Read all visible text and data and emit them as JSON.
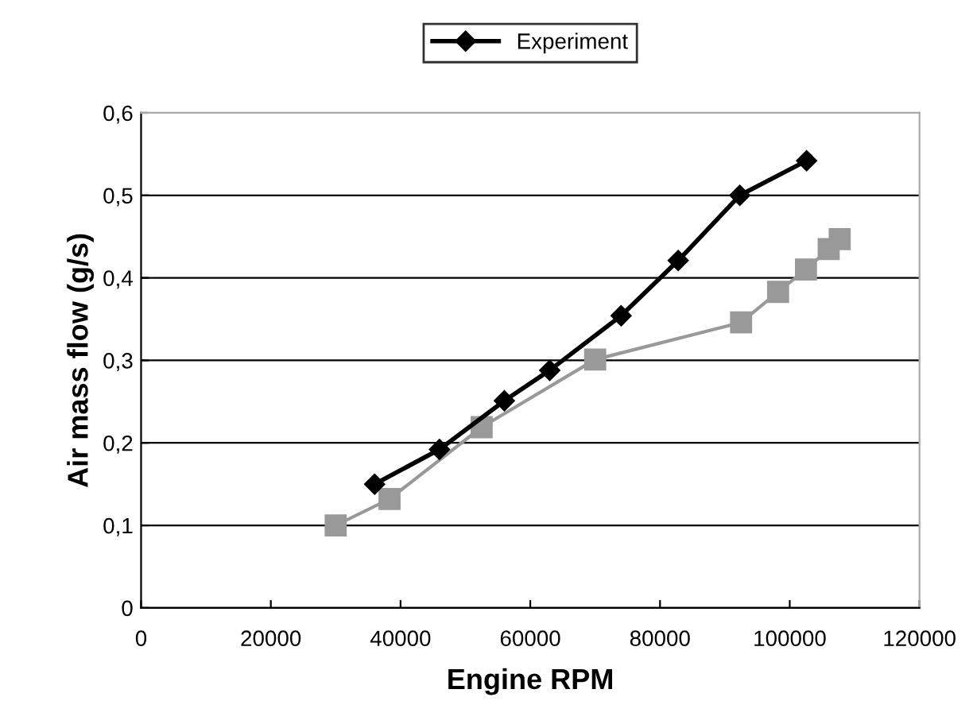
{
  "chart_data": {
    "type": "line",
    "xlabel": "Engine RPM",
    "ylabel": "Air mass flow (g/s)",
    "xlim": [
      0,
      120000
    ],
    "xticks": [
      0,
      20000,
      40000,
      60000,
      80000,
      100000,
      120000
    ],
    "ylim": [
      0,
      0.6
    ],
    "yticks": [
      0,
      {
        "value": 0.1,
        "label": "0,1"
      },
      {
        "value": 0.2,
        "label": "0,2"
      },
      {
        "value": 0.3,
        "label": "0,3"
      },
      {
        "value": 0.4,
        "label": "0,4"
      },
      {
        "value": 0.5,
        "label": "0,5"
      },
      {
        "value": 0.6,
        "label": "0,6"
      }
    ],
    "grid": "y",
    "legend": "top",
    "series": [
      {
        "name": "Experiment",
        "color": "#000000",
        "marker": "diamond",
        "x": [
          36000,
          46000,
          56000,
          63000,
          74000,
          82800,
          92300,
          102600
        ],
        "values": [
          0.15,
          0.192,
          0.251,
          0.288,
          0.354,
          0.421,
          0.5,
          0.542
        ]
      },
      {
        "color": "#999999",
        "marker": "square",
        "x": [
          30000,
          38300,
          52500,
          70000,
          92500,
          98200,
          102500,
          106000,
          107700
        ],
        "values": [
          0.1,
          0.132,
          0.219,
          0.301,
          0.346,
          0.383,
          0.41,
          0.435,
          0.447
        ]
      }
    ]
  }
}
